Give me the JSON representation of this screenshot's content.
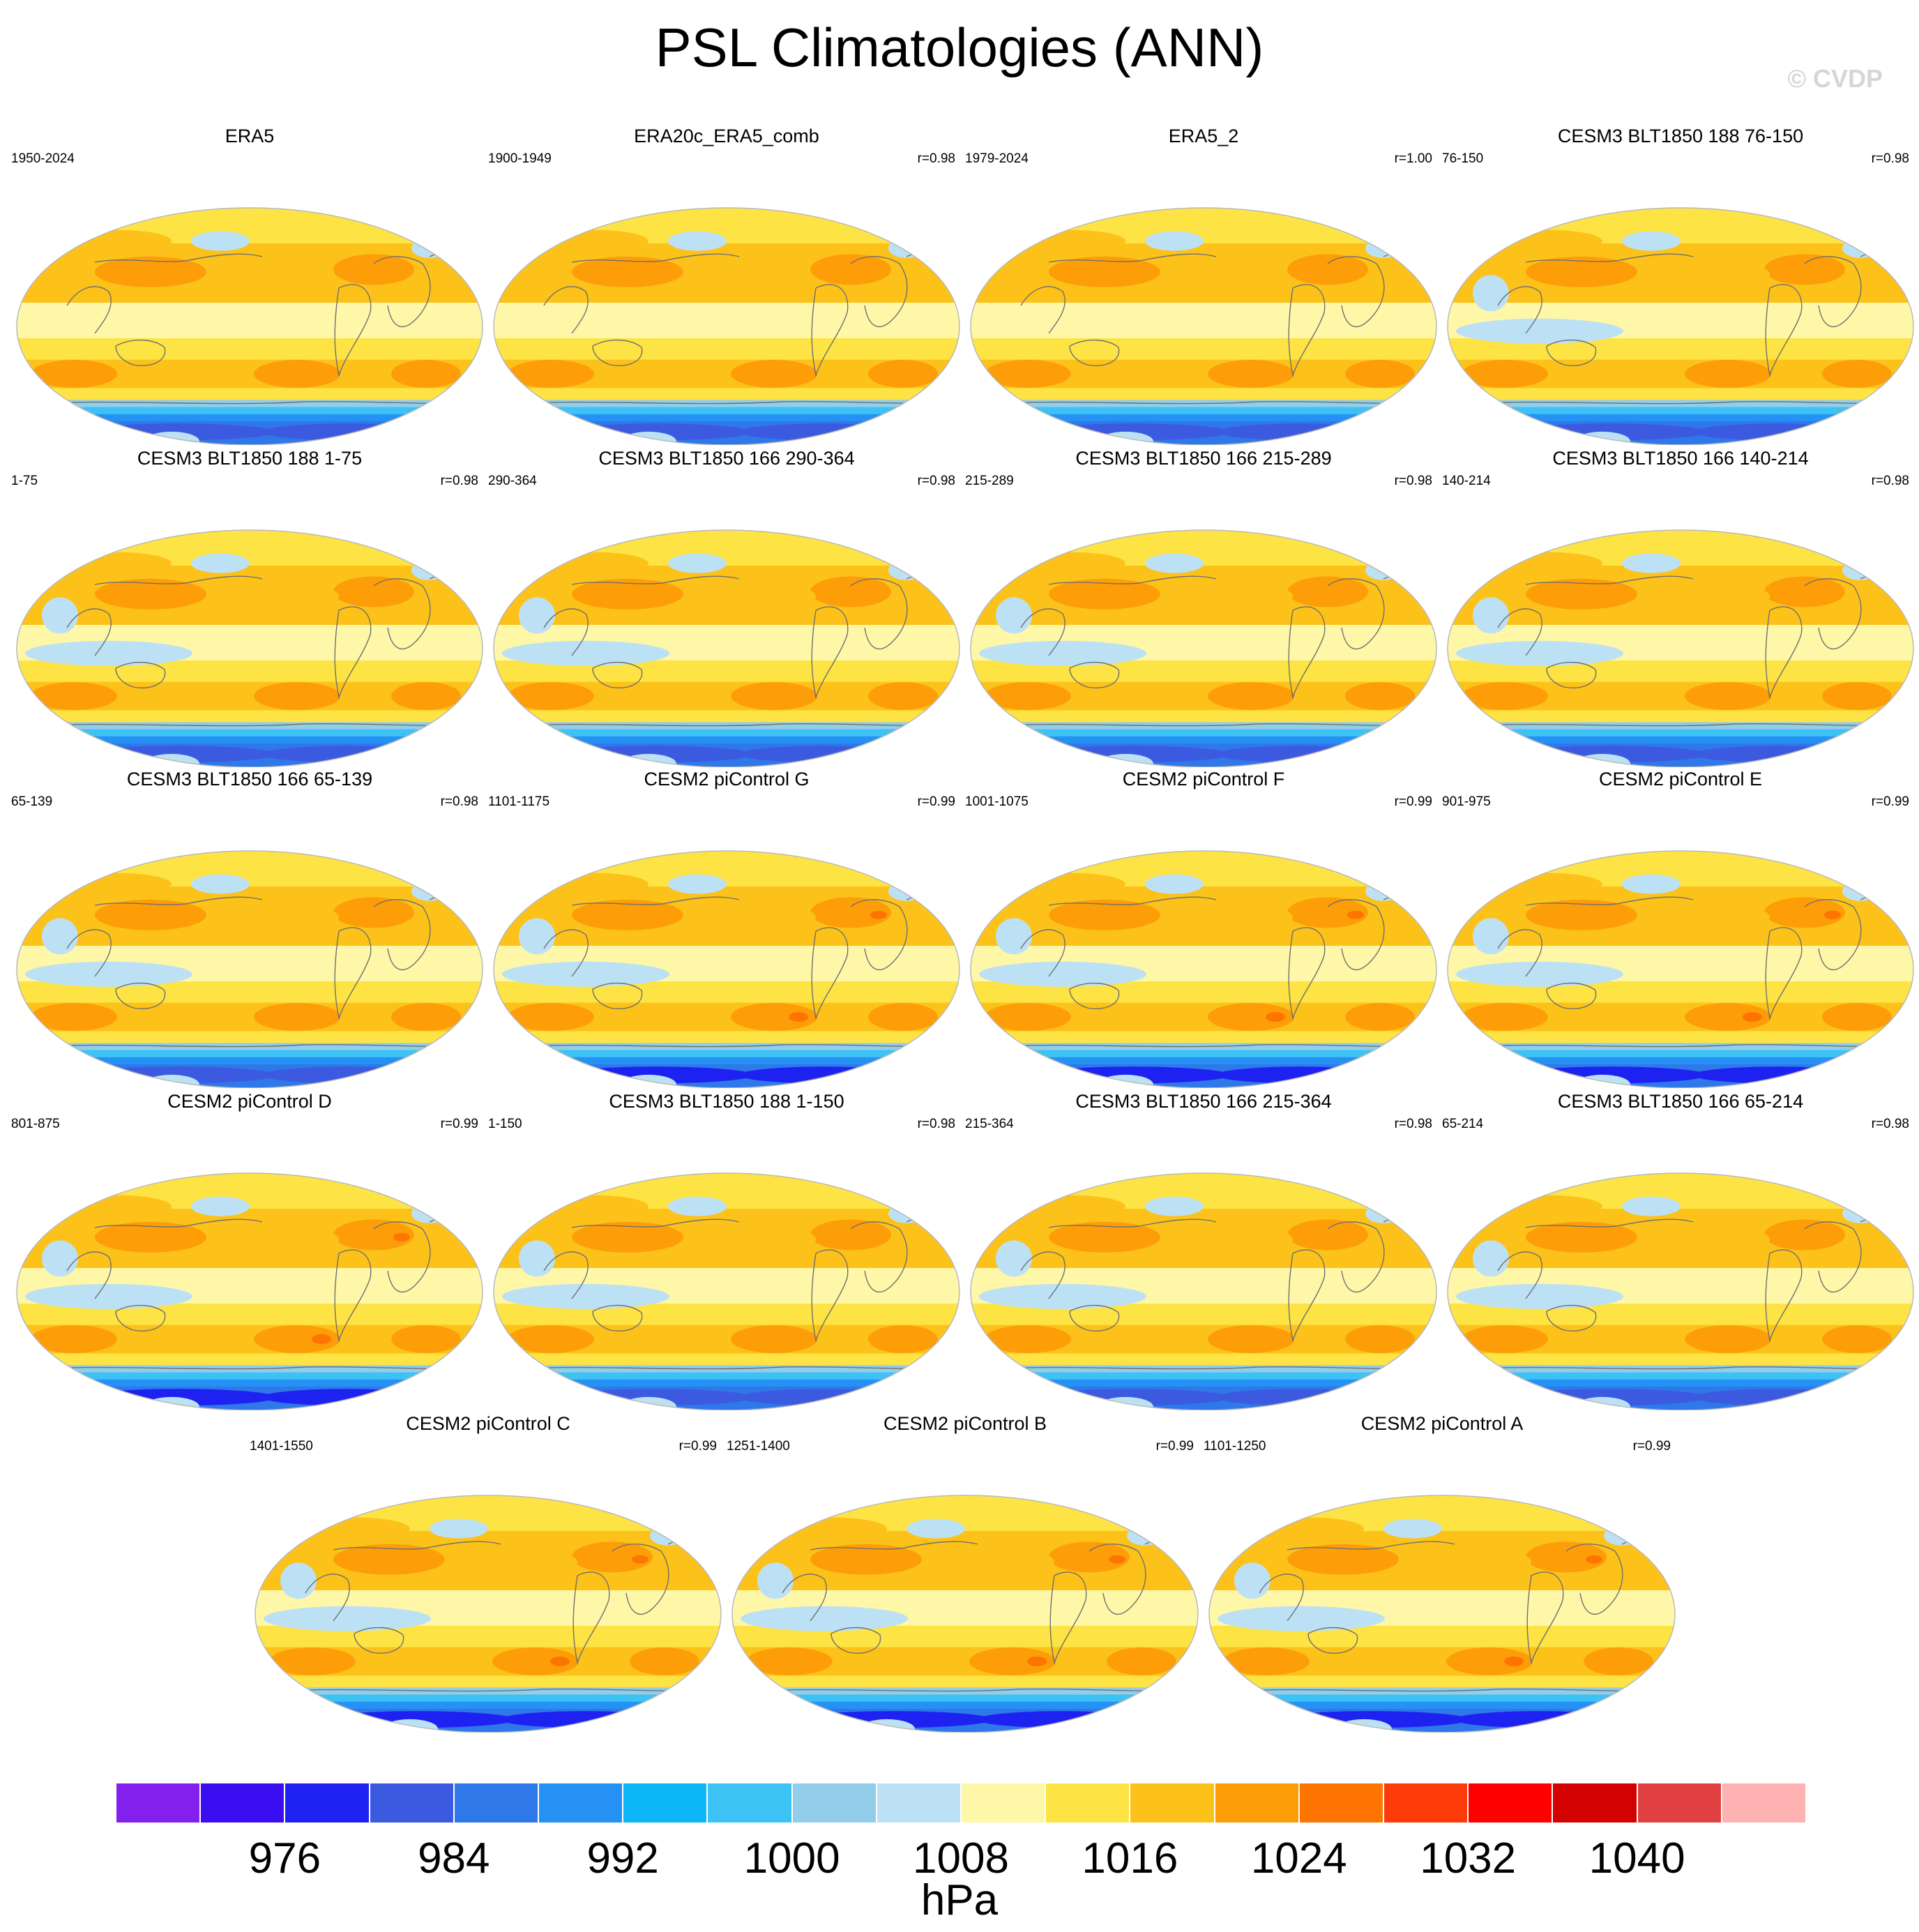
{
  "title": "PSL Climatologies (ANN)",
  "watermark": "© CVDP",
  "panels": [
    {
      "title": "ERA5",
      "period": "1950-2024",
      "r": ""
    },
    {
      "title": "ERA20c_ERA5_comb",
      "period": "1900-1949",
      "r": "r=0.98"
    },
    {
      "title": "ERA5_2",
      "period": "1979-2024",
      "r": "r=1.00"
    },
    {
      "title": "CESM3 BLT1850 188 76-150",
      "period": "76-150",
      "r": "r=0.98"
    },
    {
      "title": "CESM3 BLT1850 188 1-75",
      "period": "1-75",
      "r": "r=0.98"
    },
    {
      "title": "CESM3 BLT1850 166 290-364",
      "period": "290-364",
      "r": "r=0.98"
    },
    {
      "title": "CESM3 BLT1850 166 215-289",
      "period": "215-289",
      "r": "r=0.98"
    },
    {
      "title": "CESM3 BLT1850 166 140-214",
      "period": "140-214",
      "r": "r=0.98"
    },
    {
      "title": "CESM3 BLT1850 166 65-139",
      "period": "65-139",
      "r": "r=0.98"
    },
    {
      "title": "CESM2 piControl G",
      "period": "1101-1175",
      "r": "r=0.99"
    },
    {
      "title": "CESM2 piControl F",
      "period": "1001-1075",
      "r": "r=0.99"
    },
    {
      "title": "CESM2 piControl E",
      "period": "901-975",
      "r": "r=0.99"
    },
    {
      "title": "CESM2 piControl D",
      "period": "801-875",
      "r": "r=0.99"
    },
    {
      "title": "CESM3 BLT1850 188 1-150",
      "period": "1-150",
      "r": "r=0.98"
    },
    {
      "title": "CESM3 BLT1850 166 215-364",
      "period": "215-364",
      "r": "r=0.98"
    },
    {
      "title": "CESM3 BLT1850 166 65-214",
      "period": "65-214",
      "r": "r=0.98"
    },
    {
      "title": "CESM2 piControl C",
      "period": "1401-1550",
      "r": "r=0.99"
    },
    {
      "title": "CESM2 piControl B",
      "period": "1251-1400",
      "r": "r=0.99"
    },
    {
      "title": "CESM2 piControl A",
      "period": "1101-1250",
      "r": "r=0.99"
    }
  ],
  "colorbar": {
    "units": "hPa",
    "colors": [
      "#8420ee",
      "#3a0ef0",
      "#1e22f0",
      "#3c5ae0",
      "#2f78ea",
      "#2591f5",
      "#0cb6f7",
      "#3dc2f5",
      "#92cdea",
      "#bde1f4",
      "#fff7a8",
      "#fde444",
      "#fcc21a",
      "#fd9e09",
      "#fd7500",
      "#fd3a0a",
      "#fe0000",
      "#d30101",
      "#e04040",
      "#ffb2b2"
    ],
    "labels": [
      "976",
      "984",
      "992",
      "1000",
      "1008",
      "1016",
      "1024",
      "1032",
      "1040"
    ],
    "label_levels": [
      976,
      984,
      992,
      1000,
      1008,
      1016,
      1024,
      1032,
      1040
    ],
    "levels": [
      972,
      976,
      980,
      984,
      988,
      992,
      996,
      1000,
      1004,
      1008,
      1012,
      1016,
      1020,
      1024,
      1028,
      1032,
      1036,
      1040,
      1044
    ]
  }
}
